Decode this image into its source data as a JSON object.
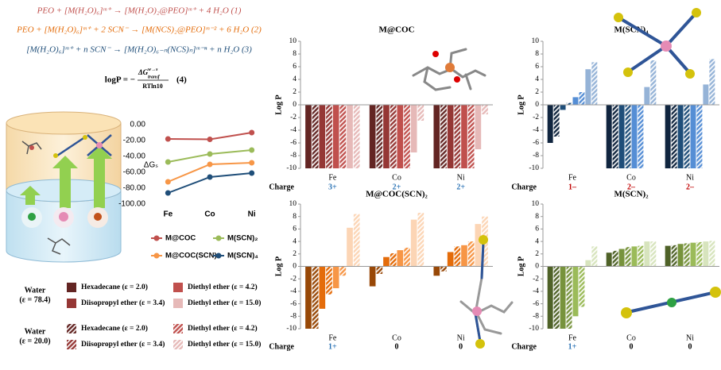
{
  "equations": {
    "eq1": "PEO + [M(H₂O)₆]ᵐ⁺ → [M(H₂O)₂@PEO]ᵐ⁺ + 4 H₂O   (1)",
    "eq2": "PEO + [M(H₂O)₆]ᵐ⁺ + 2 SCN⁻ → [M(NCS)₂@PEO]ᵐ⁻² + 6 H₂O   (2)",
    "eq3": "[M(H₂O)₆]ᵐ⁺ + n SCN⁻ → [M(H₂O)₆₋ₙ(NCS)ₙ]ᵐ⁻ⁿ + n H₂O   (3)",
    "eq4": {
      "lhs": "logP = −",
      "numerator_main": "ΔG",
      "numerator_sup": "w→s",
      "numerator_sub": "transf",
      "denominator": "RTln10",
      "number": "(4)"
    }
  },
  "chart_data": [
    {
      "type": "line",
      "y_label": "ΔGₛ",
      "categories": [
        "Fe",
        "Co",
        "Ni"
      ],
      "ylim": [
        -100,
        0
      ],
      "yticks": [
        {
          "value": 0,
          "label": "0.00"
        },
        {
          "value": -20,
          "label": "-20.00"
        },
        {
          "value": -40,
          "label": "-40.00"
        },
        {
          "value": -60,
          "label": "-60.00"
        },
        {
          "value": -80,
          "label": "-80.00"
        },
        {
          "value": -100,
          "label": "-100.00"
        }
      ],
      "grid": false,
      "series": [
        {
          "name": "M@COC",
          "color": "#c0504d",
          "values": [
            -18,
            -18.5,
            -10
          ]
        },
        {
          "name": "M(SCN)₂",
          "color": "#9bbb59",
          "values": [
            -47,
            -37,
            -32
          ]
        },
        {
          "name": "M@COC(SCN)₂",
          "color": "#f79646",
          "values": [
            -72,
            -50,
            -48
          ]
        },
        {
          "name": "M(SCN)₄",
          "color": "#1f4e79",
          "values": [
            -86,
            -66,
            -61
          ]
        }
      ]
    },
    {
      "type": "bar",
      "title": "M@COC",
      "y_label": "Log P",
      "categories": [
        "Fe",
        "Co",
        "Ni"
      ],
      "charge_label": "Charge",
      "charges": [
        "3+",
        "2+",
        "2+"
      ],
      "charge_colors": [
        "#2e75b6",
        "#2e75b6",
        "#2e75b6"
      ],
      "ylim": [
        -10,
        10
      ],
      "yticks": [
        -10,
        -8,
        -6,
        -4,
        -2,
        0,
        2,
        4,
        6,
        8,
        10
      ],
      "water_labels": [
        [
          "Water",
          "(ε = 78.4)"
        ],
        [
          "Water",
          "(ε = 20.0)"
        ]
      ],
      "series": [
        {
          "name": "Hexadecane (ε = 2.0)",
          "color": "#632523",
          "hatched": false,
          "values": [
            -10,
            -10,
            -10
          ]
        },
        {
          "name": "Hexadecane (ε = 2.0)",
          "color": "#632523",
          "hatched": true,
          "values": [
            -10,
            -10,
            -10
          ]
        },
        {
          "name": "Diisopropyl ether (ε = 3.4)",
          "color": "#953735",
          "hatched": false,
          "values": [
            -10,
            -10,
            -10
          ]
        },
        {
          "name": "Diisopropyl ether (ε = 3.4)",
          "color": "#953735",
          "hatched": true,
          "values": [
            -10,
            -10,
            -10
          ]
        },
        {
          "name": "Diethyl ether (ε = 4.2)",
          "color": "#c0504d",
          "hatched": false,
          "values": [
            -10,
            -10,
            -10
          ]
        },
        {
          "name": "Diethyl ether (ε = 4.2)",
          "color": "#c0504d",
          "hatched": true,
          "values": [
            -10,
            -10,
            -10
          ]
        },
        {
          "name": "Diethyl ether (ε = 15.0)",
          "color": "#e6b9b8",
          "hatched": false,
          "values": [
            -10,
            -7.5,
            -7
          ]
        },
        {
          "name": "Diethyl ether (ε = 15.0)",
          "color": "#e6b9b8",
          "hatched": true,
          "values": [
            -10,
            -2.5,
            -1.5
          ]
        }
      ]
    },
    {
      "type": "bar",
      "title": "M(SCN)₄",
      "y_label": "Log P",
      "categories": [
        "Fe",
        "Co",
        "Ni"
      ],
      "charge_label": "Charge",
      "charges": [
        "1–",
        "2–",
        "2–"
      ],
      "charge_colors": [
        "#c00000",
        "#c00000",
        "#c00000"
      ],
      "ylim": [
        -10,
        10
      ],
      "yticks": [
        -10,
        -8,
        -6,
        -4,
        -2,
        0,
        2,
        4,
        6,
        8,
        10
      ],
      "series": [
        {
          "color": "#10253f",
          "hatched": false,
          "values": [
            -6,
            -10,
            -10
          ]
        },
        {
          "color": "#10253f",
          "hatched": true,
          "values": [
            -5,
            -10,
            -10
          ]
        },
        {
          "color": "#1f4e79",
          "hatched": false,
          "values": [
            -0.8,
            -10,
            -10
          ]
        },
        {
          "color": "#1f4e79",
          "hatched": true,
          "values": [
            0.3,
            -10,
            -10
          ]
        },
        {
          "color": "#558ed5",
          "hatched": false,
          "values": [
            1.2,
            -10,
            -10
          ]
        },
        {
          "color": "#558ed5",
          "hatched": true,
          "values": [
            2,
            -10,
            -10
          ]
        },
        {
          "color": "#95b3d7",
          "hatched": false,
          "values": [
            5.6,
            2.8,
            3.2
          ]
        },
        {
          "color": "#95b3d7",
          "hatched": true,
          "values": [
            6.7,
            7,
            7.2
          ]
        }
      ]
    },
    {
      "type": "bar",
      "title": "M@COC(SCN)₂",
      "y_label": "Log P",
      "categories": [
        "Fe",
        "Co",
        "Ni"
      ],
      "charge_label": "Charge",
      "charges": [
        "1+",
        "0",
        "0"
      ],
      "charge_colors": [
        "#2e75b6",
        "#000000",
        "#000000"
      ],
      "ylim": [
        -10,
        10
      ],
      "yticks": [
        -10,
        -8,
        -6,
        -4,
        -2,
        0,
        2,
        4,
        6,
        8,
        10
      ],
      "series": [
        {
          "color": "#984807",
          "hatched": false,
          "values": [
            -10,
            -3.2,
            -1.5
          ]
        },
        {
          "color": "#984807",
          "hatched": true,
          "values": [
            -10,
            -1.2,
            -0.8
          ]
        },
        {
          "color": "#e46c0a",
          "hatched": false,
          "values": [
            -6.8,
            1.5,
            2.3
          ]
        },
        {
          "color": "#e46c0a",
          "hatched": true,
          "values": [
            -4.5,
            2.1,
            3.2
          ]
        },
        {
          "color": "#f79646",
          "hatched": false,
          "values": [
            -3.5,
            2.6,
            3.4
          ]
        },
        {
          "color": "#f79646",
          "hatched": true,
          "values": [
            -1.5,
            3,
            4
          ]
        },
        {
          "color": "#fcd5b5",
          "hatched": false,
          "values": [
            6.2,
            7.5,
            6.8
          ]
        },
        {
          "color": "#fcd5b5",
          "hatched": true,
          "values": [
            8.4,
            8.6,
            8
          ]
        }
      ]
    },
    {
      "type": "bar",
      "title": "M(SCN)₂",
      "y_label": "Log P",
      "categories": [
        "Fe",
        "Co",
        "Ni"
      ],
      "charge_label": "Charge",
      "charges": [
        "1+",
        "0",
        "0"
      ],
      "charge_colors": [
        "#2e75b6",
        "#000000",
        "#000000"
      ],
      "ylim": [
        -10,
        10
      ],
      "yticks": [
        -10,
        -8,
        -6,
        -4,
        -2,
        0,
        2,
        4,
        6,
        8,
        10
      ],
      "series": [
        {
          "color": "#4f6228",
          "hatched": false,
          "values": [
            -10,
            2.2,
            3.3
          ]
        },
        {
          "color": "#4f6228",
          "hatched": true,
          "values": [
            -10,
            2.5,
            3.4
          ]
        },
        {
          "color": "#77933c",
          "hatched": false,
          "values": [
            -10,
            2.8,
            3.6
          ]
        },
        {
          "color": "#77933c",
          "hatched": true,
          "values": [
            -10,
            3.1,
            3.7
          ]
        },
        {
          "color": "#9bbb59",
          "hatched": false,
          "values": [
            -8,
            3.2,
            3.8
          ]
        },
        {
          "color": "#9bbb59",
          "hatched": true,
          "values": [
            -6.5,
            3.3,
            3.9
          ]
        },
        {
          "color": "#d7e4bd",
          "hatched": false,
          "values": [
            1,
            4,
            4
          ]
        },
        {
          "color": "#d7e4bd",
          "hatched": true,
          "values": [
            3.2,
            4,
            4.1
          ]
        }
      ]
    }
  ]
}
